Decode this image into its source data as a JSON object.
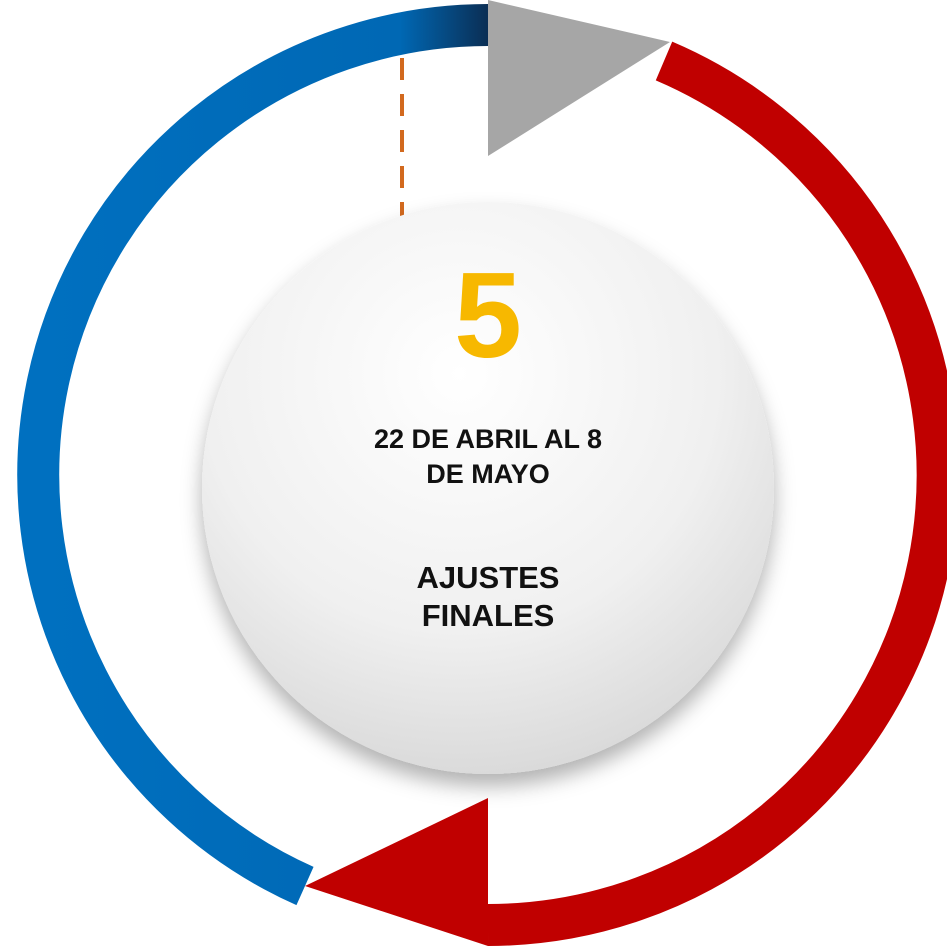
{
  "step": {
    "number": "5",
    "date_lines": [
      "22 DE ABRIL AL 8",
      "DE MAYO"
    ],
    "title_lines": [
      "AJUSTES",
      "FINALES"
    ]
  }
}
